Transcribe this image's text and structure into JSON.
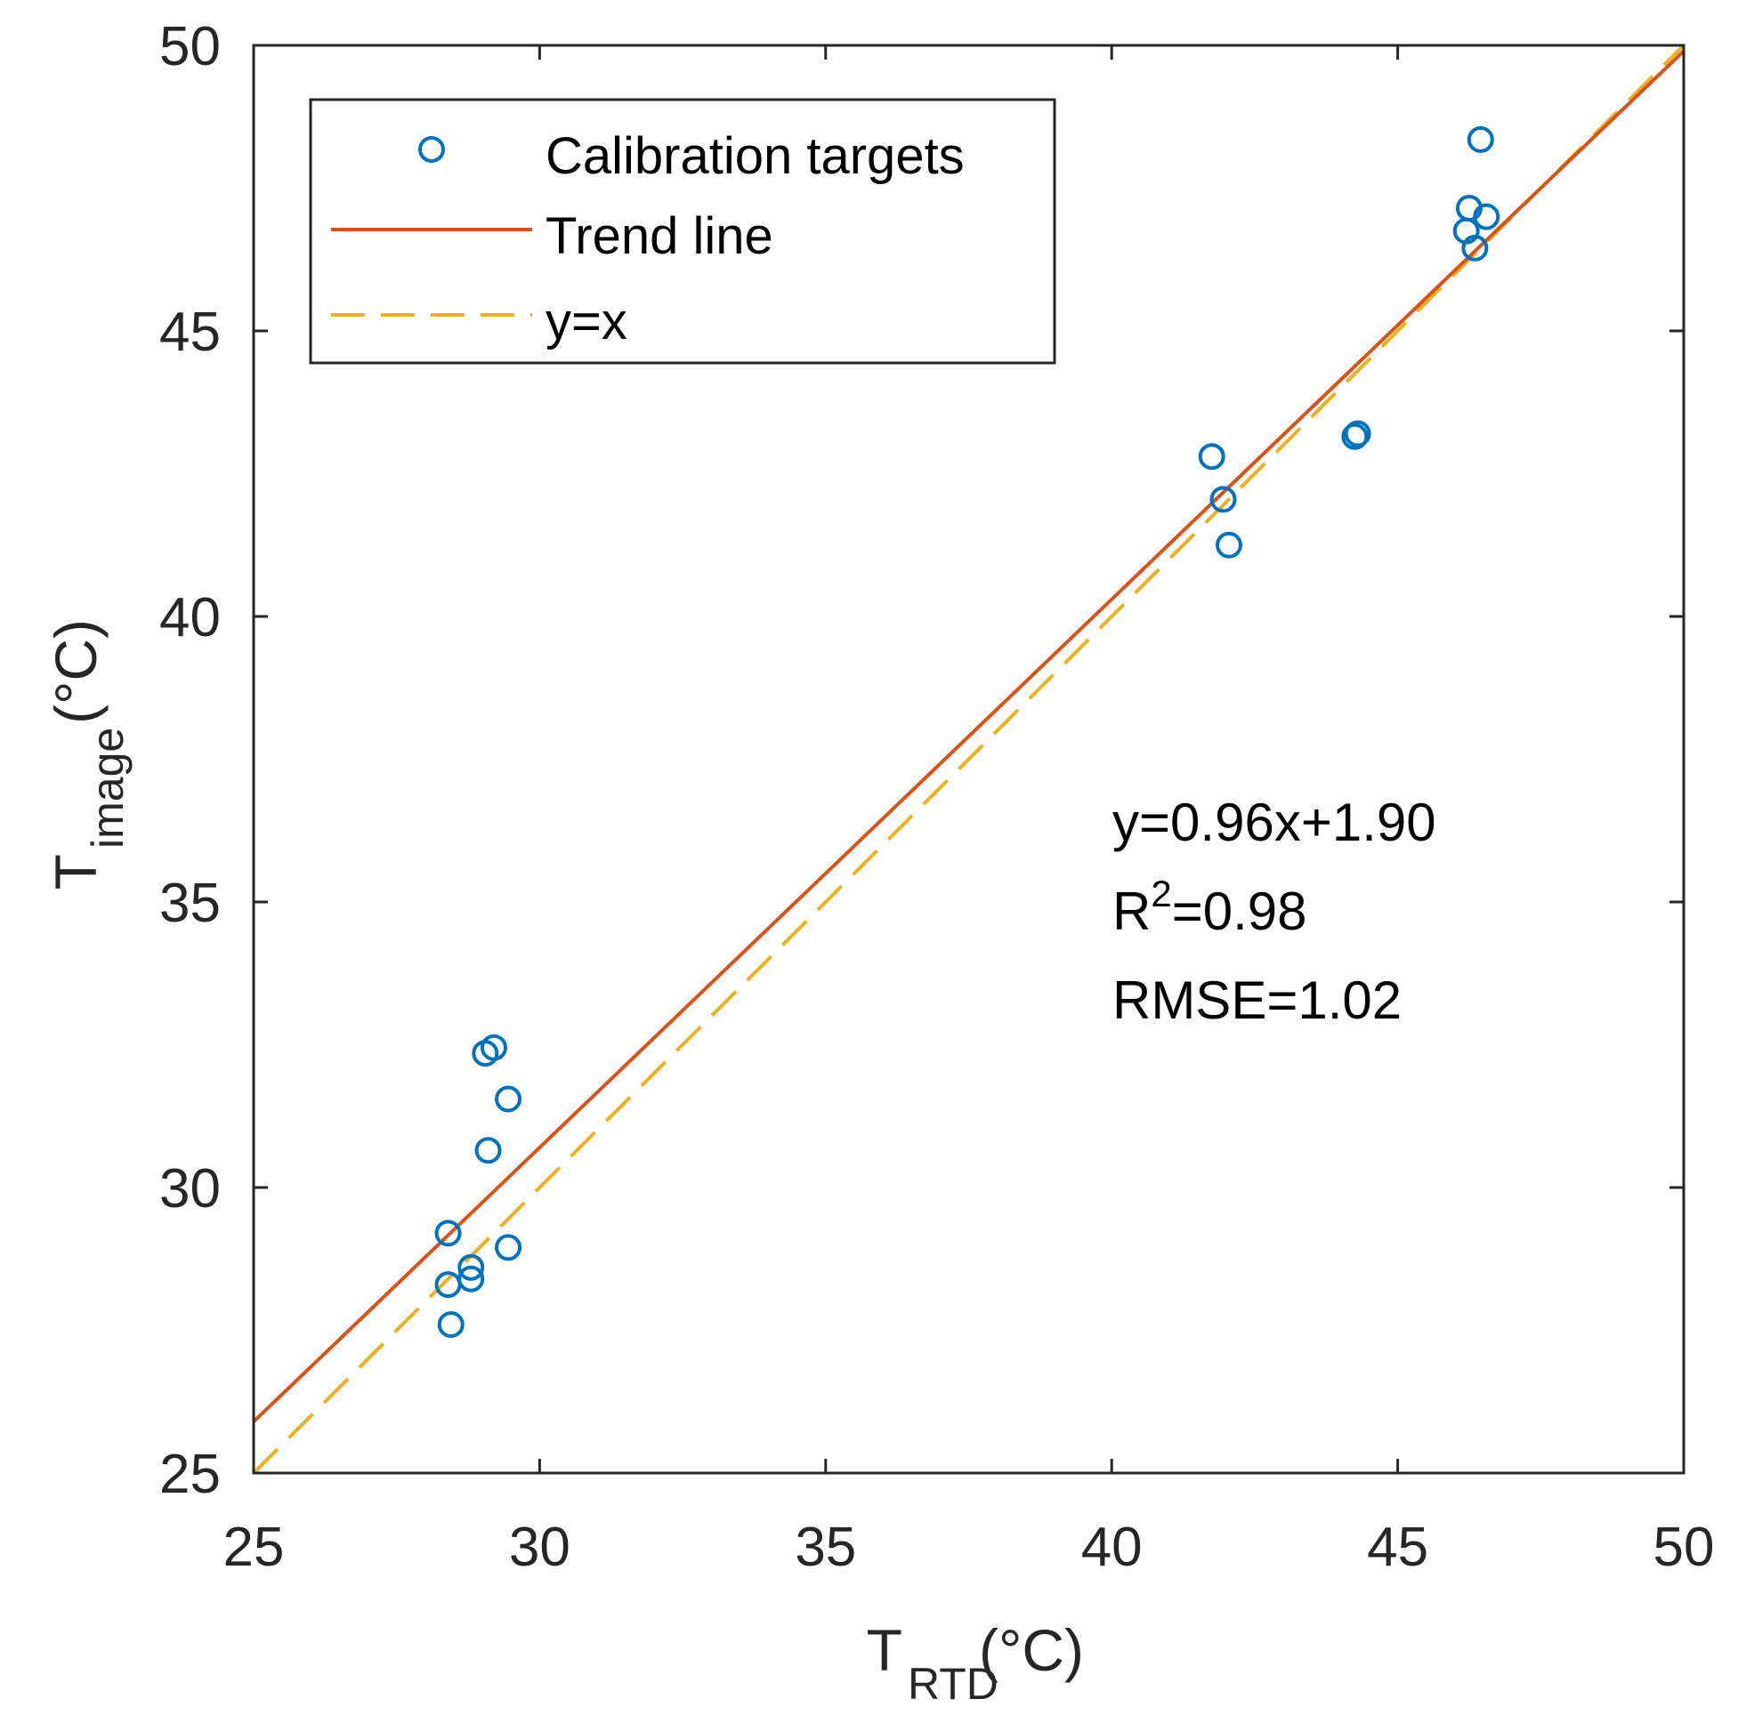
{
  "chart_data": {
    "type": "scatter",
    "title": "",
    "xlabel": {
      "main": "T",
      "sub": "RTD",
      "unit": " (°C)"
    },
    "ylabel": {
      "main": "T",
      "sub": "image",
      "unit": " (°C)"
    },
    "xlim": [
      25,
      50
    ],
    "ylim": [
      25,
      50
    ],
    "xticks": [
      25,
      30,
      35,
      40,
      45,
      50
    ],
    "yticks": [
      25,
      30,
      35,
      40,
      45,
      50
    ],
    "grid": false,
    "legend_position": "top-left",
    "series": [
      {
        "name": "Calibration targets",
        "kind": "scatter",
        "marker": "open-circle",
        "color": "#0072BD",
        "points": [
          [
            28.4,
            29.2
          ],
          [
            28.4,
            28.3
          ],
          [
            28.45,
            27.6
          ],
          [
            28.8,
            28.6
          ],
          [
            28.8,
            28.4
          ],
          [
            29.45,
            28.95
          ],
          [
            29.05,
            32.35
          ],
          [
            29.2,
            32.45
          ],
          [
            29.45,
            31.55
          ],
          [
            29.1,
            30.65
          ],
          [
            41.75,
            42.8
          ],
          [
            41.95,
            42.05
          ],
          [
            42.05,
            41.25
          ],
          [
            44.25,
            43.15
          ],
          [
            44.3,
            43.2
          ],
          [
            46.45,
            48.35
          ],
          [
            46.25,
            47.15
          ],
          [
            46.55,
            47.0
          ],
          [
            46.2,
            46.75
          ],
          [
            46.35,
            46.45
          ]
        ]
      },
      {
        "name": "Trend line",
        "kind": "line",
        "color": "#D95319",
        "dash": "solid",
        "slope": 0.96,
        "intercept": 1.9,
        "x_range": [
          25,
          50
        ]
      },
      {
        "name": "y=x",
        "kind": "line",
        "color": "#EDB120",
        "dash": "dashed",
        "slope": 1,
        "intercept": 0,
        "x_range": [
          25,
          50
        ]
      }
    ],
    "annotations": {
      "equation": "y=0.96x+1.90",
      "r2_prefix": "R",
      "r2_superscript": "2",
      "r2_value": "=0.98",
      "rmse": "RMSE=1.02"
    }
  }
}
